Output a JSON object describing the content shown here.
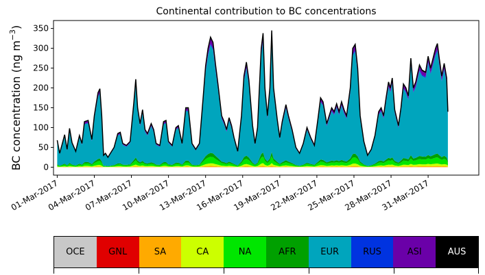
{
  "chart_data": {
    "type": "area",
    "title": "Continental contribution to BC concentrations",
    "ylabel": "BC concentration (ng m",
    "ylabel_exp": "−3",
    "ylabel_suffix": ")",
    "xlabel": "",
    "ylim": [
      -20,
      370
    ],
    "yticks": [
      0,
      50,
      100,
      150,
      200,
      250,
      300,
      350
    ],
    "xlim": [
      -0.3,
      34.1
    ],
    "xticks": [
      {
        "day": 0,
        "label": "01-Mar-2017"
      },
      {
        "day": 3,
        "label": "04-Mar-2017"
      },
      {
        "day": 6,
        "label": "07-Mar-2017"
      },
      {
        "day": 9,
        "label": "10-Mar-2017"
      },
      {
        "day": 12,
        "label": "13-Mar-2017"
      },
      {
        "day": 15,
        "label": "16-Mar-2017"
      },
      {
        "day": 18,
        "label": "19-Mar-2017"
      },
      {
        "day": 21,
        "label": "22-Mar-2017"
      },
      {
        "day": 24,
        "label": "25-Mar-2017"
      },
      {
        "day": 27,
        "label": "28-Mar-2017"
      },
      {
        "day": 30,
        "label": "31-Mar-2017"
      }
    ],
    "total_points": [
      [
        0.0,
        68
      ],
      [
        0.2,
        35
      ],
      [
        0.4,
        58
      ],
      [
        0.6,
        82
      ],
      [
        0.8,
        45
      ],
      [
        1.0,
        98
      ],
      [
        1.2,
        62
      ],
      [
        1.5,
        40
      ],
      [
        1.8,
        80
      ],
      [
        2.0,
        60
      ],
      [
        2.2,
        115
      ],
      [
        2.5,
        118
      ],
      [
        2.8,
        70
      ],
      [
        3.0,
        130
      ],
      [
        3.3,
        188
      ],
      [
        3.45,
        198
      ],
      [
        3.6,
        130
      ],
      [
        3.75,
        30
      ],
      [
        3.9,
        35
      ],
      [
        4.1,
        25
      ],
      [
        4.3,
        35
      ],
      [
        4.6,
        50
      ],
      [
        4.9,
        85
      ],
      [
        5.1,
        88
      ],
      [
        5.3,
        60
      ],
      [
        5.6,
        55
      ],
      [
        5.9,
        65
      ],
      [
        6.2,
        165
      ],
      [
        6.35,
        222
      ],
      [
        6.5,
        150
      ],
      [
        6.7,
        110
      ],
      [
        6.9,
        145
      ],
      [
        7.1,
        95
      ],
      [
        7.3,
        85
      ],
      [
        7.6,
        110
      ],
      [
        7.8,
        95
      ],
      [
        8.0,
        60
      ],
      [
        8.3,
        55
      ],
      [
        8.6,
        115
      ],
      [
        8.8,
        118
      ],
      [
        9.0,
        65
      ],
      [
        9.3,
        55
      ],
      [
        9.6,
        100
      ],
      [
        9.8,
        105
      ],
      [
        10.1,
        60
      ],
      [
        10.4,
        150
      ],
      [
        10.6,
        150
      ],
      [
        10.9,
        60
      ],
      [
        11.2,
        45
      ],
      [
        11.5,
        60
      ],
      [
        11.8,
        175
      ],
      [
        12.0,
        255
      ],
      [
        12.2,
        300
      ],
      [
        12.4,
        328
      ],
      [
        12.6,
        315
      ],
      [
        12.8,
        260
      ],
      [
        13.0,
        210
      ],
      [
        13.3,
        130
      ],
      [
        13.5,
        115
      ],
      [
        13.7,
        95
      ],
      [
        13.9,
        125
      ],
      [
        14.1,
        105
      ],
      [
        14.3,
        75
      ],
      [
        14.6,
        40
      ],
      [
        14.9,
        130
      ],
      [
        15.1,
        230
      ],
      [
        15.3,
        265
      ],
      [
        15.5,
        220
      ],
      [
        15.8,
        105
      ],
      [
        16.0,
        60
      ],
      [
        16.2,
        100
      ],
      [
        16.5,
        300
      ],
      [
        16.65,
        338
      ],
      [
        16.8,
        200
      ],
      [
        17.0,
        130
      ],
      [
        17.2,
        200
      ],
      [
        17.35,
        345
      ],
      [
        17.5,
        200
      ],
      [
        17.8,
        120
      ],
      [
        18.0,
        75
      ],
      [
        18.2,
        115
      ],
      [
        18.5,
        158
      ],
      [
        18.7,
        130
      ],
      [
        19.0,
        95
      ],
      [
        19.3,
        50
      ],
      [
        19.6,
        35
      ],
      [
        19.9,
        60
      ],
      [
        20.2,
        100
      ],
      [
        20.5,
        75
      ],
      [
        20.8,
        55
      ],
      [
        21.1,
        125
      ],
      [
        21.3,
        175
      ],
      [
        21.5,
        165
      ],
      [
        21.8,
        110
      ],
      [
        22.0,
        130
      ],
      [
        22.2,
        150
      ],
      [
        22.4,
        140
      ],
      [
        22.6,
        160
      ],
      [
        22.8,
        140
      ],
      [
        23.0,
        165
      ],
      [
        23.2,
        145
      ],
      [
        23.4,
        130
      ],
      [
        23.7,
        200
      ],
      [
        23.9,
        300
      ],
      [
        24.1,
        310
      ],
      [
        24.3,
        250
      ],
      [
        24.5,
        130
      ],
      [
        24.8,
        65
      ],
      [
        25.1,
        30
      ],
      [
        25.4,
        45
      ],
      [
        25.7,
        80
      ],
      [
        26.0,
        140
      ],
      [
        26.2,
        150
      ],
      [
        26.4,
        130
      ],
      [
        26.6,
        175
      ],
      [
        26.8,
        215
      ],
      [
        26.95,
        200
      ],
      [
        27.1,
        225
      ],
      [
        27.3,
        145
      ],
      [
        27.6,
        105
      ],
      [
        27.8,
        150
      ],
      [
        28.0,
        210
      ],
      [
        28.2,
        200
      ],
      [
        28.4,
        180
      ],
      [
        28.6,
        275
      ],
      [
        28.8,
        200
      ],
      [
        29.0,
        215
      ],
      [
        29.3,
        258
      ],
      [
        29.5,
        245
      ],
      [
        29.8,
        240
      ],
      [
        30.0,
        280
      ],
      [
        30.2,
        250
      ],
      [
        30.4,
        275
      ],
      [
        30.6,
        300
      ],
      [
        30.75,
        312
      ],
      [
        30.9,
        275
      ],
      [
        31.1,
        230
      ],
      [
        31.3,
        262
      ],
      [
        31.5,
        225
      ],
      [
        31.6,
        140
      ]
    ],
    "series": [
      {
        "name": "OCE",
        "color": "#c8c8c8",
        "share": 0.0
      },
      {
        "name": "GNL",
        "color": "#e00000",
        "share": 0.0
      },
      {
        "name": "SA",
        "color": "#ffaa00",
        "share": 0.01
      },
      {
        "name": "CA",
        "color": "#ccff00",
        "share": 0.02
      },
      {
        "name": "NA",
        "color": "#00e600",
        "share": 0.05
      },
      {
        "name": "AFR",
        "color": "#00a000",
        "share": 0.03
      },
      {
        "name": "EUR",
        "color": "#00a5bd",
        "share": 0.83
      },
      {
        "name": "RUS",
        "color": "#0033e0",
        "share": 0.01
      },
      {
        "name": "ASI",
        "color": "#6a00a8",
        "share": 0.04
      },
      {
        "name": "AUS",
        "color": "#000000",
        "share": 0.01
      }
    ],
    "legend": [
      "OCE",
      "GNL",
      "SA",
      "CA",
      "NA",
      "AFR",
      "EUR",
      "RUS",
      "ASI",
      "AUS"
    ]
  }
}
